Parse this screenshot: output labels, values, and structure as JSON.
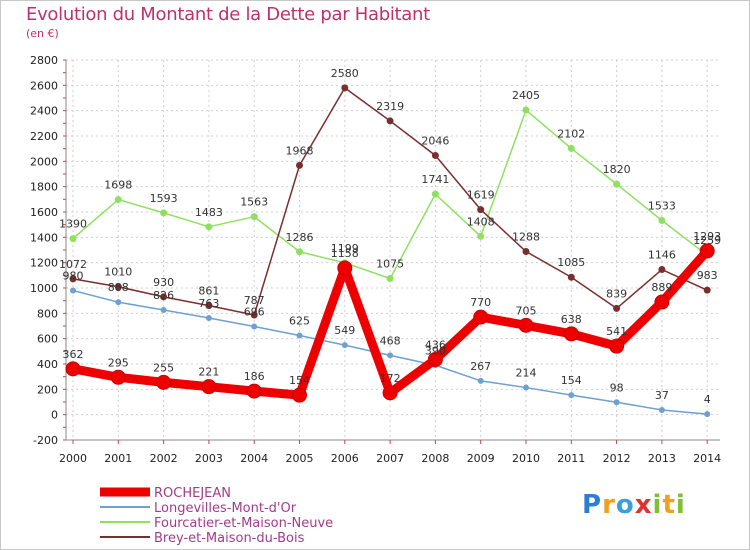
{
  "title": "Evolution du Montant de la Dette par Habitant",
  "subtitle": "(en €)",
  "brand": {
    "letters": [
      "P",
      "r",
      "o",
      "x",
      "i",
      "t",
      "i"
    ],
    "colors": [
      "#2a7fd4",
      "#f0a020",
      "#3aa0d8",
      "#e03030",
      "#80c030",
      "#f0a020",
      "#80c030"
    ]
  },
  "chart_data": {
    "type": "line",
    "title": "Evolution du Montant de la Dette par Habitant",
    "ylabel": "(en €)",
    "x": [
      "2000",
      "2001",
      "2002",
      "2003",
      "2004",
      "2005",
      "2006",
      "2007",
      "2008",
      "2009",
      "2010",
      "2011",
      "2012",
      "2013",
      "2014"
    ],
    "ylim": [
      -200,
      2800
    ],
    "yticks": [
      -200,
      0,
      200,
      400,
      600,
      800,
      1000,
      1200,
      1400,
      1600,
      1800,
      2000,
      2200,
      2400,
      2600,
      2800
    ],
    "grid": true,
    "legend": "bottom-left",
    "series": [
      {
        "name": "ROCHEJEAN",
        "color": "#ee0000",
        "width": 9,
        "marker": 7,
        "values": [
          362,
          295,
          255,
          221,
          186,
          154,
          1158,
          172,
          436,
          770,
          705,
          638,
          541,
          889,
          1293
        ]
      },
      {
        "name": "Longevilles-Mont-d'Or",
        "color": "#6fa0d0",
        "width": 1.5,
        "marker": 3,
        "values": [
          980,
          888,
          826,
          763,
          696,
          625,
          549,
          468,
          390,
          267,
          214,
          154,
          98,
          37,
          4
        ]
      },
      {
        "name": "Fourcatier-et-Maison-Neuve",
        "color": "#90e060",
        "width": 1.5,
        "marker": 3.5,
        "values": [
          1390,
          1698,
          1593,
          1483,
          1563,
          1286,
          1199,
          1075,
          1741,
          1408,
          2405,
          2102,
          1820,
          1533,
          1259
        ]
      },
      {
        "name": "Brey-et-Maison-du-Bois",
        "color": "#7a2f2f",
        "width": 1.5,
        "marker": 3.5,
        "values": [
          1072,
          1010,
          930,
          861,
          787,
          1968,
          2580,
          2319,
          2046,
          1619,
          1288,
          1085,
          839,
          1146,
          983
        ]
      }
    ],
    "data_labels": {
      "ROCHEJEAN": [
        "362",
        "295",
        "255",
        "221",
        "186",
        "154",
        "1158",
        "172",
        "436",
        "770",
        "705",
        "638",
        "541",
        "889",
        "1293"
      ],
      "Longevilles-Mont-d'Or": [
        "980",
        "888",
        "826",
        "763",
        "696",
        "625",
        "549",
        "468",
        "390",
        "267",
        "214",
        "154",
        "98",
        "37",
        "4"
      ],
      "Fourcatier-et-Maison-Neuve": [
        "1390",
        "1698",
        "1593",
        "1483",
        "1563",
        "1286",
        "1199",
        "1075",
        "1741",
        "1408",
        "2405",
        "2102",
        "1820",
        "1533",
        "1259"
      ],
      "Brey-et-Maison-du-Bois": [
        "1072",
        "1010",
        "930",
        "861",
        "787",
        "1968",
        "2580",
        "2319",
        "2046",
        "1619",
        "1288",
        "1085",
        "839",
        "1146",
        "983"
      ]
    }
  }
}
